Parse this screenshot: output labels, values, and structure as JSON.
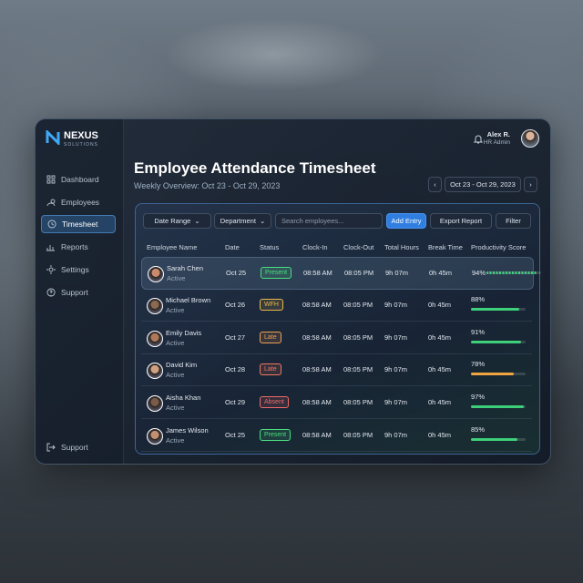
{
  "brand": {
    "name": "NEXUS",
    "tagline": "SOLUTIONS"
  },
  "user": {
    "name": "Alex R.",
    "role": "HR Admin"
  },
  "nav": [
    "Dashboard",
    "Employees",
    "Timesheet",
    "Reports",
    "Settings",
    "Support"
  ],
  "nav_active": 2,
  "nav_footer": "Support",
  "header": {
    "title": "Employee Attendance Timesheet",
    "subtitle": "Weekly Overview: Oct 23 - Oct 29, 2023",
    "date_range": "Oct 23 - Oct 29, 2023"
  },
  "toolbar": {
    "date_filter": "Date Range",
    "department_filter": "Department",
    "search_placeholder": "Search employees...",
    "add": "Add Entry",
    "export": "Export Report",
    "filter": "Filter"
  },
  "table": {
    "columns": [
      "Employee Name",
      "Date",
      "Status",
      "Clock-In",
      "Clock-Out",
      "Total Hours",
      "Break Time",
      "Productivity Score"
    ],
    "rows": [
      {
        "name": "Sarah Chen",
        "state": "Active",
        "date": "Oct 25",
        "status": "Present",
        "status_color": "#4ade80",
        "clock_in": "08:58 AM",
        "clock_out": "08:05 PM",
        "total": "9h 07m",
        "break": "0h 45m",
        "productivity": 94,
        "productivity_label": "94%",
        "bar_color": "#3ecf7a"
      },
      {
        "name": "Michael Brown",
        "state": "Active",
        "date": "Oct 26",
        "status": "WFH",
        "status_color": "#e8b84a",
        "clock_in": "08:58 AM",
        "clock_out": "08:05 PM",
        "total": "9h 07m",
        "break": "0h 45m",
        "productivity": 88,
        "productivity_label": "88%",
        "bar_color": "#3ecf7a"
      },
      {
        "name": "Emily Davis",
        "state": "Active",
        "date": "Oct 27",
        "status": "Late",
        "status_color": "#f0a050",
        "clock_in": "08:58 AM",
        "clock_out": "08:05 PM",
        "total": "9h 07m",
        "break": "0h 45m",
        "productivity": 91,
        "productivity_label": "91%",
        "bar_color": "#3ecf7a"
      },
      {
        "name": "David Kim",
        "state": "Active",
        "date": "Oct 28",
        "status": "Late",
        "status_color": "#f07860",
        "clock_in": "08:58 AM",
        "clock_out": "08:05 PM",
        "total": "9h 07m",
        "break": "0h 45m",
        "productivity": 78,
        "productivity_label": "78%",
        "bar_color": "#f0a540"
      },
      {
        "name": "Aisha Khan",
        "state": "Active",
        "date": "Oct 29",
        "status": "Absent",
        "status_color": "#f06a6a",
        "clock_in": "08:58 AM",
        "clock_out": "08:05 PM",
        "total": "9h 07m",
        "break": "0h 45m",
        "productivity": 97,
        "productivity_label": "97%",
        "bar_color": "#3ecf7a"
      },
      {
        "name": "James Wilson",
        "state": "Active",
        "date": "Oct 25",
        "status": "Present",
        "status_color": "#4ade80",
        "clock_in": "08:58 AM",
        "clock_out": "08:05 PM",
        "total": "9h 07m",
        "break": "0h 45m",
        "productivity": 85,
        "productivity_label": "85%",
        "bar_color": "#3ecf7a"
      }
    ]
  }
}
